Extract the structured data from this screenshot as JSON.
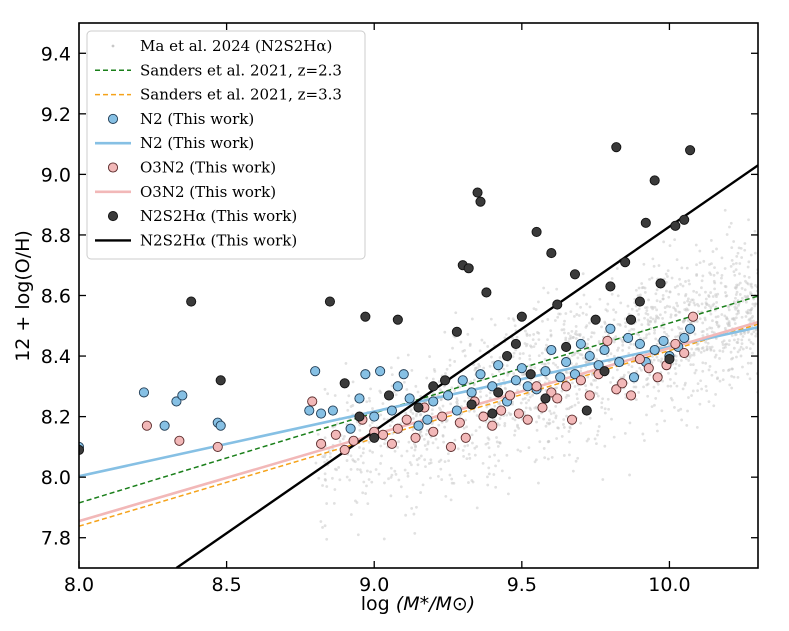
{
  "chart_data": {
    "type": "scatter",
    "title": "",
    "xlabel_prefix": "log",
    "xlabel_math": "(M*/M⊙)",
    "ylabel": "12 + log(O/H)",
    "xlim": [
      8.0,
      10.3
    ],
    "ylim": [
      7.7,
      9.5
    ],
    "xticks": [
      8.0,
      8.5,
      9.0,
      9.5,
      10.0
    ],
    "xtick_labels": [
      "8.0",
      "8.5",
      "9.0",
      "9.5",
      "10.0"
    ],
    "yticks": [
      7.8,
      8.0,
      8.2,
      8.4,
      8.6,
      8.8,
      9.0,
      9.2,
      9.4
    ],
    "ytick_labels": [
      "7.8",
      "8.0",
      "8.2",
      "8.4",
      "8.6",
      "8.8",
      "9.0",
      "9.2",
      "9.4"
    ],
    "legend_position": "top-left",
    "colors": {
      "background_points": "#c8c8c8",
      "sanders_z23": "#1a7f1a",
      "sanders_z33": "#f5a21a",
      "n2": "#86c0e4",
      "o3n2": "#f2b8b8",
      "n2s2ha": "#3a3a3a",
      "n2s2ha_fit": "#000000"
    },
    "legend": [
      {
        "key": "ma",
        "label": "Ma et al. 2024 (N2S2Hα)",
        "marker": "small-dot"
      },
      {
        "key": "sanders23",
        "label": "Sanders et al. 2021, z=2.3",
        "marker": "dashed-line"
      },
      {
        "key": "sanders33",
        "label": "Sanders et al. 2021, z=3.3",
        "marker": "dashed-line"
      },
      {
        "key": "n2pts",
        "label": "N2 (This work)",
        "marker": "circle"
      },
      {
        "key": "n2fit",
        "label": "N2 (This work)",
        "marker": "solid-line"
      },
      {
        "key": "o3n2pts",
        "label": "O3N2 (This work)",
        "marker": "circle"
      },
      {
        "key": "o3n2fit",
        "label": "O3N2 (This work)",
        "marker": "solid-line"
      },
      {
        "key": "n2s2pts",
        "label": "N2S2Hα (This work)",
        "marker": "circle"
      },
      {
        "key": "n2s2fit",
        "label": "N2S2Hα (This work)",
        "marker": "solid-line"
      }
    ],
    "lines": [
      {
        "name": "Sanders et al. 2021, z=2.3",
        "style": "dashed",
        "x": [
          8.0,
          10.3
        ],
        "y": [
          7.915,
          8.598
        ]
      },
      {
        "name": "Sanders et al. 2021, z=3.3",
        "style": "dashed",
        "x": [
          8.0,
          10.3
        ],
        "y": [
          7.838,
          8.505
        ]
      },
      {
        "name": "N2 (This work)",
        "style": "solid",
        "x": [
          8.0,
          10.3
        ],
        "y": [
          8.003,
          8.495
        ]
      },
      {
        "name": "O3N2 (This work)",
        "style": "solid",
        "x": [
          8.0,
          10.3
        ],
        "y": [
          7.855,
          8.512
        ]
      },
      {
        "name": "N2S2Hα (This work)",
        "style": "solid",
        "x": [
          8.33,
          10.3
        ],
        "y": [
          7.7,
          9.03
        ]
      }
    ],
    "series": [
      {
        "name": "N2 (This work)",
        "x": [
          8.0,
          8.22,
          8.29,
          8.33,
          8.35,
          8.47,
          8.48,
          8.8,
          8.78,
          8.82,
          8.86,
          8.92,
          8.95,
          8.97,
          9.0,
          9.02,
          9.06,
          9.08,
          9.1,
          9.12,
          9.15,
          9.18,
          9.2,
          9.25,
          9.28,
          9.3,
          9.33,
          9.36,
          9.4,
          9.42,
          9.45,
          9.48,
          9.5,
          9.52,
          9.55,
          9.58,
          9.6,
          9.63,
          9.65,
          9.68,
          9.7,
          9.73,
          9.76,
          9.78,
          9.8,
          9.83,
          9.86,
          9.88,
          9.9,
          9.92,
          9.95,
          9.98,
          10.0,
          10.03,
          10.05,
          10.07
        ],
        "y": [
          8.1,
          8.28,
          8.17,
          8.25,
          8.27,
          8.18,
          8.17,
          8.35,
          8.22,
          8.21,
          8.22,
          8.16,
          8.26,
          8.34,
          8.2,
          8.35,
          8.22,
          8.3,
          8.34,
          8.26,
          8.17,
          8.19,
          8.25,
          8.27,
          8.22,
          8.32,
          8.28,
          8.34,
          8.3,
          8.37,
          8.25,
          8.32,
          8.36,
          8.3,
          8.29,
          8.35,
          8.42,
          8.33,
          8.38,
          8.34,
          8.44,
          8.4,
          8.37,
          8.42,
          8.49,
          8.38,
          8.46,
          8.33,
          8.44,
          8.38,
          8.42,
          8.45,
          8.4,
          8.43,
          8.46,
          8.49
        ]
      },
      {
        "name": "O3N2 (This work)",
        "x": [
          8.23,
          8.34,
          8.47,
          8.79,
          8.82,
          8.87,
          8.9,
          8.93,
          8.96,
          9.0,
          9.03,
          9.06,
          9.08,
          9.11,
          9.14,
          9.17,
          9.2,
          9.23,
          9.26,
          9.29,
          9.31,
          9.34,
          9.37,
          9.4,
          9.43,
          9.46,
          9.49,
          9.52,
          9.55,
          9.57,
          9.6,
          9.62,
          9.65,
          9.67,
          9.7,
          9.73,
          9.76,
          9.79,
          9.82,
          9.84,
          9.87,
          9.9,
          9.93,
          9.96,
          9.99,
          10.02,
          10.05,
          10.08
        ],
        "y": [
          8.17,
          8.12,
          8.1,
          8.25,
          8.11,
          8.14,
          8.09,
          8.12,
          8.19,
          8.15,
          8.14,
          8.11,
          8.16,
          8.19,
          8.13,
          8.23,
          8.15,
          8.2,
          8.1,
          8.18,
          8.13,
          8.25,
          8.2,
          8.17,
          8.22,
          8.27,
          8.21,
          8.19,
          8.3,
          8.23,
          8.28,
          8.26,
          8.3,
          8.19,
          8.32,
          8.27,
          8.34,
          8.45,
          8.29,
          8.31,
          8.27,
          8.39,
          8.36,
          8.33,
          8.37,
          8.44,
          8.41,
          8.53
        ]
      },
      {
        "name": "N2S2Hα (This work)",
        "x": [
          8.0,
          8.38,
          8.48,
          8.85,
          8.9,
          8.95,
          8.97,
          9.0,
          9.05,
          9.08,
          9.15,
          9.2,
          9.24,
          9.28,
          9.3,
          9.32,
          9.33,
          9.35,
          9.36,
          9.38,
          9.4,
          9.42,
          9.45,
          9.48,
          9.5,
          9.53,
          9.55,
          9.58,
          9.6,
          9.62,
          9.65,
          9.68,
          9.72,
          9.75,
          9.78,
          9.8,
          9.82,
          9.85,
          9.87,
          9.9,
          9.92,
          9.95,
          9.97,
          10.0,
          10.02,
          10.05,
          10.07
        ],
        "y": [
          8.09,
          8.58,
          8.32,
          8.58,
          8.31,
          8.2,
          8.53,
          8.13,
          8.27,
          8.52,
          8.23,
          8.3,
          8.32,
          8.48,
          8.7,
          8.69,
          8.24,
          8.94,
          8.91,
          8.61,
          8.21,
          8.28,
          8.4,
          8.44,
          8.53,
          8.34,
          8.81,
          8.26,
          8.74,
          8.57,
          8.43,
          8.67,
          8.22,
          8.52,
          8.35,
          8.63,
          9.09,
          8.71,
          8.52,
          8.58,
          8.84,
          8.98,
          8.64,
          8.39,
          8.83,
          8.85,
          9.08
        ]
      }
    ]
  }
}
